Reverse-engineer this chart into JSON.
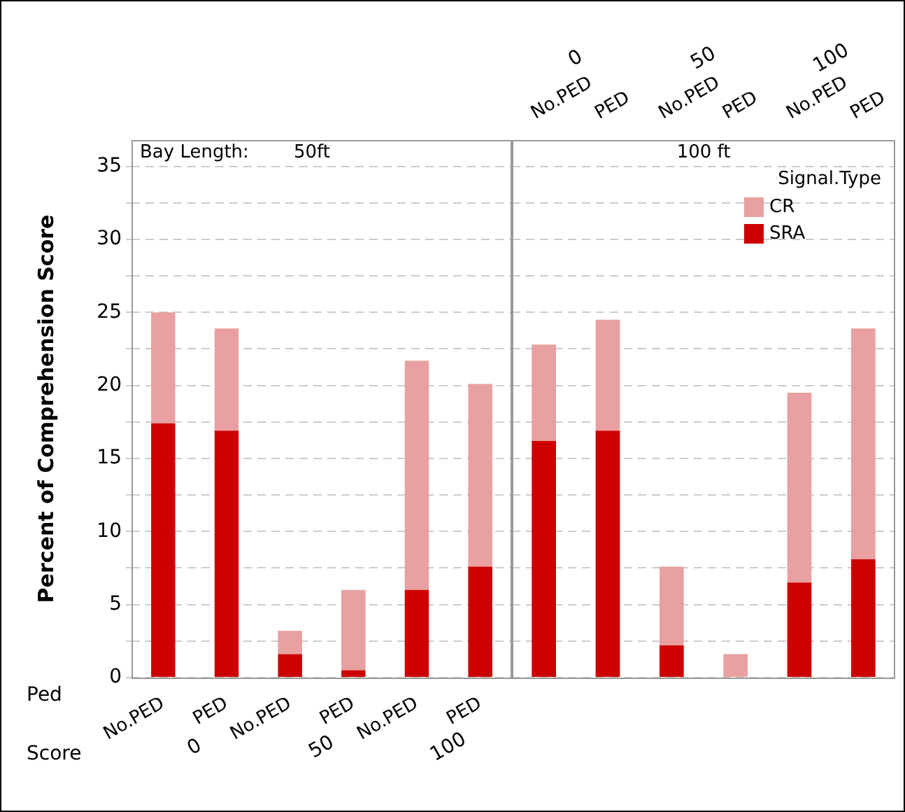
{
  "chart_data": [
    {
      "type": "bar",
      "stacked": true,
      "title": "Bay Length:",
      "subtitle": "50ft",
      "ylabel": "Percent of Comprehension Score",
      "xlabel": "Ped",
      "annotations": [
        "Score",
        "0",
        "50",
        "100"
      ],
      "categories": [
        "No.PED",
        "PED",
        "No.PED",
        "PED",
        "No.PED",
        "PED"
      ],
      "series": [
        {
          "color": "#cc0000",
          "values": [
            17.4,
            16.9,
            1.6,
            0.5,
            6.0,
            7.6
          ]
        },
        {
          "color": "#e8a0a0",
          "values": [
            7.6,
            7.0,
            1.6,
            5.5,
            15.7,
            12.5
          ]
        }
      ],
      "ylim": [
        0,
        36.8
      ],
      "yticks": [
        0,
        {
          "value": 2.5,
          "label": null
        },
        5,
        {
          "value": 7.5,
          "label": null
        },
        10,
        {
          "value": 12.5,
          "label": null
        },
        15,
        {
          "value": 17.5,
          "label": null
        },
        20,
        {
          "value": 22.5,
          "label": null
        },
        25,
        {
          "value": 27.5,
          "label": null
        },
        30,
        {
          "value": 32.5,
          "label": null
        },
        35
      ],
      "grid": "y"
    },
    {
      "type": "bar",
      "stacked": true,
      "title": "100 ft",
      "annotations": [
        "0",
        "50",
        "100"
      ],
      "legend": "top right",
      "legend_title": "Signal.Type",
      "tick_labels": "x",
      "categories": [
        "No.PED",
        "PED",
        "No.PED",
        "PED",
        "No.PED",
        "PED"
      ],
      "series": [
        {
          "name": "SRA",
          "color": "#cc0000",
          "values": [
            16.2,
            16.9,
            2.2,
            0,
            6.5,
            8.1
          ]
        },
        {
          "name": "CR",
          "color": "#e8a0a0",
          "values": [
            6.6,
            7.6,
            5.4,
            1.6,
            13.0,
            15.8
          ]
        }
      ],
      "ylim": [
        0,
        36.8
      ],
      "yticks": [
        0,
        {
          "value": 2.5,
          "label": null
        },
        5,
        {
          "value": 7.5,
          "label": null
        },
        10,
        {
          "value": 12.5,
          "label": null
        },
        15,
        {
          "value": 17.5,
          "label": null
        },
        20,
        {
          "value": 22.5,
          "label": null
        },
        25,
        {
          "value": 27.5,
          "label": null
        },
        30,
        {
          "value": 32.5,
          "label": null
        },
        35
      ],
      "grid": "y"
    }
  ]
}
